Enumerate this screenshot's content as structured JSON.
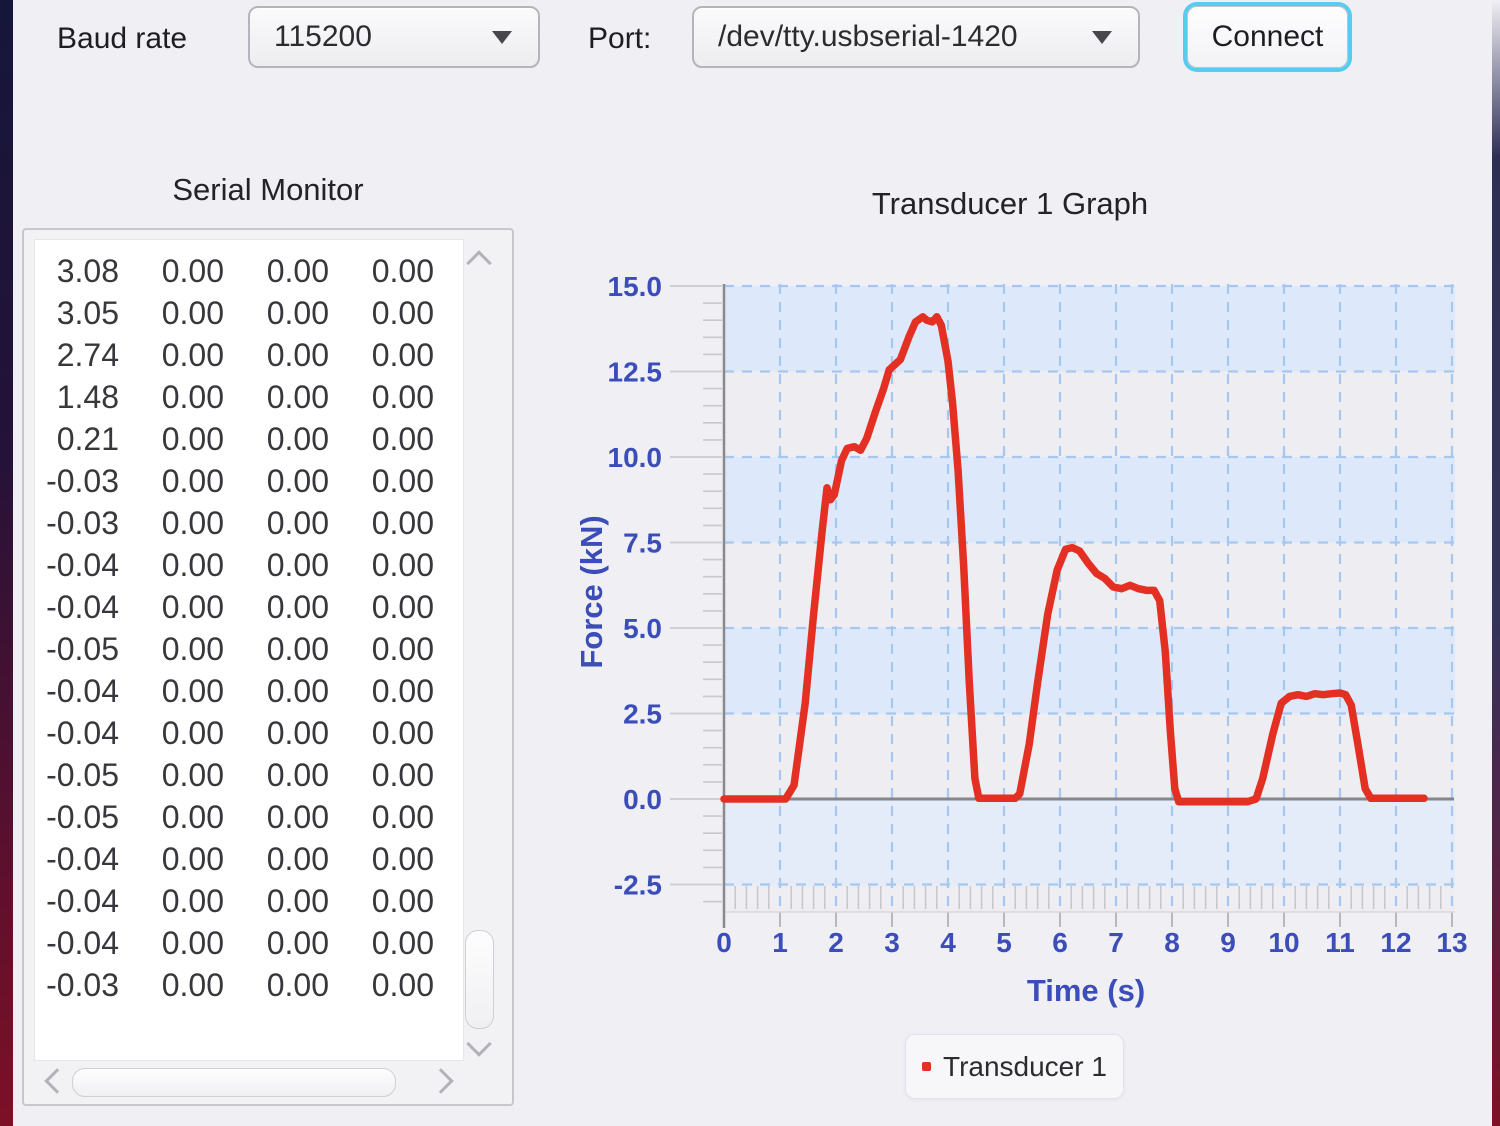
{
  "header": {
    "baud_label": "Baud rate",
    "baud_value": "115200",
    "port_label": "Port:",
    "port_value": "/dev/tty.usbserial-1420",
    "connect_label": "Connect"
  },
  "serial_monitor": {
    "title": "Serial Monitor",
    "rows": [
      [
        "3.08",
        "0.00",
        "0.00",
        "0.00"
      ],
      [
        "3.05",
        "0.00",
        "0.00",
        "0.00"
      ],
      [
        "2.74",
        "0.00",
        "0.00",
        "0.00"
      ],
      [
        "1.48",
        "0.00",
        "0.00",
        "0.00"
      ],
      [
        "0.21",
        "0.00",
        "0.00",
        "0.00"
      ],
      [
        "-0.03",
        "0.00",
        "0.00",
        "0.00"
      ],
      [
        "-0.03",
        "0.00",
        "0.00",
        "0.00"
      ],
      [
        "-0.04",
        "0.00",
        "0.00",
        "0.00"
      ],
      [
        "-0.04",
        "0.00",
        "0.00",
        "0.00"
      ],
      [
        "-0.05",
        "0.00",
        "0.00",
        "0.00"
      ],
      [
        "-0.04",
        "0.00",
        "0.00",
        "0.00"
      ],
      [
        "-0.04",
        "0.00",
        "0.00",
        "0.00"
      ],
      [
        "-0.05",
        "0.00",
        "0.00",
        "0.00"
      ],
      [
        "-0.05",
        "0.00",
        "0.00",
        "0.00"
      ],
      [
        "-0.04",
        "0.00",
        "0.00",
        "0.00"
      ],
      [
        "-0.04",
        "0.00",
        "0.00",
        "0.00"
      ],
      [
        "-0.04",
        "0.00",
        "0.00",
        "0.00"
      ],
      [
        "-0.03",
        "0.00",
        "0.00",
        "0.00"
      ]
    ]
  },
  "chart_data": {
    "type": "line",
    "title": "Transducer 1 Graph",
    "xlabel": "Time (s)",
    "ylabel": "Force (kN)",
    "xlim": [
      0,
      13.05
    ],
    "ylim": [
      -3.3,
      15.0
    ],
    "xticks": [
      0,
      1,
      2,
      3,
      4,
      5,
      6,
      7,
      8,
      9,
      10,
      11,
      12,
      13
    ],
    "yticks": [
      15.0,
      12.5,
      10.0,
      7.5,
      5.0,
      2.5,
      0.0,
      -2.5
    ],
    "ytick_labels": [
      "15.0",
      "12.5",
      "10.0",
      "7.5",
      "5.0",
      "2.5",
      "0.0",
      "-2.5"
    ],
    "x_minor_step": 0.2,
    "y_minor_step": 0.5,
    "grid": "dashed blue major grid, alternating horizontal bands, solid gray zero axis",
    "legend": {
      "label": "Transducer 1",
      "position": "bottom-center"
    },
    "series": [
      {
        "name": "Transducer 1",
        "color": "#e33022",
        "points": [
          [
            0,
            0
          ],
          [
            1.1,
            0
          ],
          [
            1.25,
            0.4
          ],
          [
            1.45,
            2.8
          ],
          [
            1.6,
            5.4
          ],
          [
            1.75,
            7.8
          ],
          [
            1.84,
            9.1
          ],
          [
            1.9,
            8.75
          ],
          [
            1.97,
            8.9
          ],
          [
            2.1,
            9.9
          ],
          [
            2.2,
            10.25
          ],
          [
            2.33,
            10.3
          ],
          [
            2.44,
            10.2
          ],
          [
            2.55,
            10.55
          ],
          [
            2.7,
            11.3
          ],
          [
            2.85,
            12.0
          ],
          [
            2.95,
            12.55
          ],
          [
            3.05,
            12.7
          ],
          [
            3.15,
            12.85
          ],
          [
            3.3,
            13.5
          ],
          [
            3.42,
            13.95
          ],
          [
            3.55,
            14.1
          ],
          [
            3.62,
            14.0
          ],
          [
            3.72,
            13.95
          ],
          [
            3.8,
            14.1
          ],
          [
            3.88,
            13.85
          ],
          [
            4.0,
            12.8
          ],
          [
            4.08,
            11.6
          ],
          [
            4.18,
            9.6
          ],
          [
            4.28,
            6.8
          ],
          [
            4.38,
            3.4
          ],
          [
            4.48,
            0.6
          ],
          [
            4.55,
            0.02
          ],
          [
            5.2,
            0.02
          ],
          [
            5.28,
            0.15
          ],
          [
            5.45,
            1.6
          ],
          [
            5.6,
            3.4
          ],
          [
            5.78,
            5.4
          ],
          [
            5.95,
            6.7
          ],
          [
            6.1,
            7.3
          ],
          [
            6.22,
            7.35
          ],
          [
            6.35,
            7.25
          ],
          [
            6.5,
            6.9
          ],
          [
            6.65,
            6.6
          ],
          [
            6.8,
            6.45
          ],
          [
            6.95,
            6.2
          ],
          [
            7.1,
            6.15
          ],
          [
            7.25,
            6.25
          ],
          [
            7.4,
            6.15
          ],
          [
            7.55,
            6.1
          ],
          [
            7.68,
            6.1
          ],
          [
            7.78,
            5.8
          ],
          [
            7.88,
            4.3
          ],
          [
            7.97,
            2.0
          ],
          [
            8.05,
            0.3
          ],
          [
            8.12,
            -0.08
          ],
          [
            9.35,
            -0.08
          ],
          [
            9.5,
            0.0
          ],
          [
            9.62,
            0.6
          ],
          [
            9.8,
            1.9
          ],
          [
            9.95,
            2.8
          ],
          [
            10.1,
            3.0
          ],
          [
            10.25,
            3.05
          ],
          [
            10.4,
            3.0
          ],
          [
            10.55,
            3.08
          ],
          [
            10.7,
            3.05
          ],
          [
            10.85,
            3.08
          ],
          [
            11.0,
            3.1
          ],
          [
            11.1,
            3.05
          ],
          [
            11.2,
            2.75
          ],
          [
            11.32,
            1.6
          ],
          [
            11.45,
            0.3
          ],
          [
            11.55,
            0.02
          ],
          [
            12.5,
            0.02
          ]
        ]
      }
    ]
  },
  "colors": {
    "series_red": "#e33022",
    "axis_text_blue": "#3a4db8",
    "grid_dash_blue": "#a6c8f0",
    "band_blue": "#dde9fa",
    "band_light": "#ededf2",
    "zero_axis_gray": "#85858a",
    "focus_ring_cyan": "#58cbf0",
    "page_bg": "#f0eff4"
  }
}
